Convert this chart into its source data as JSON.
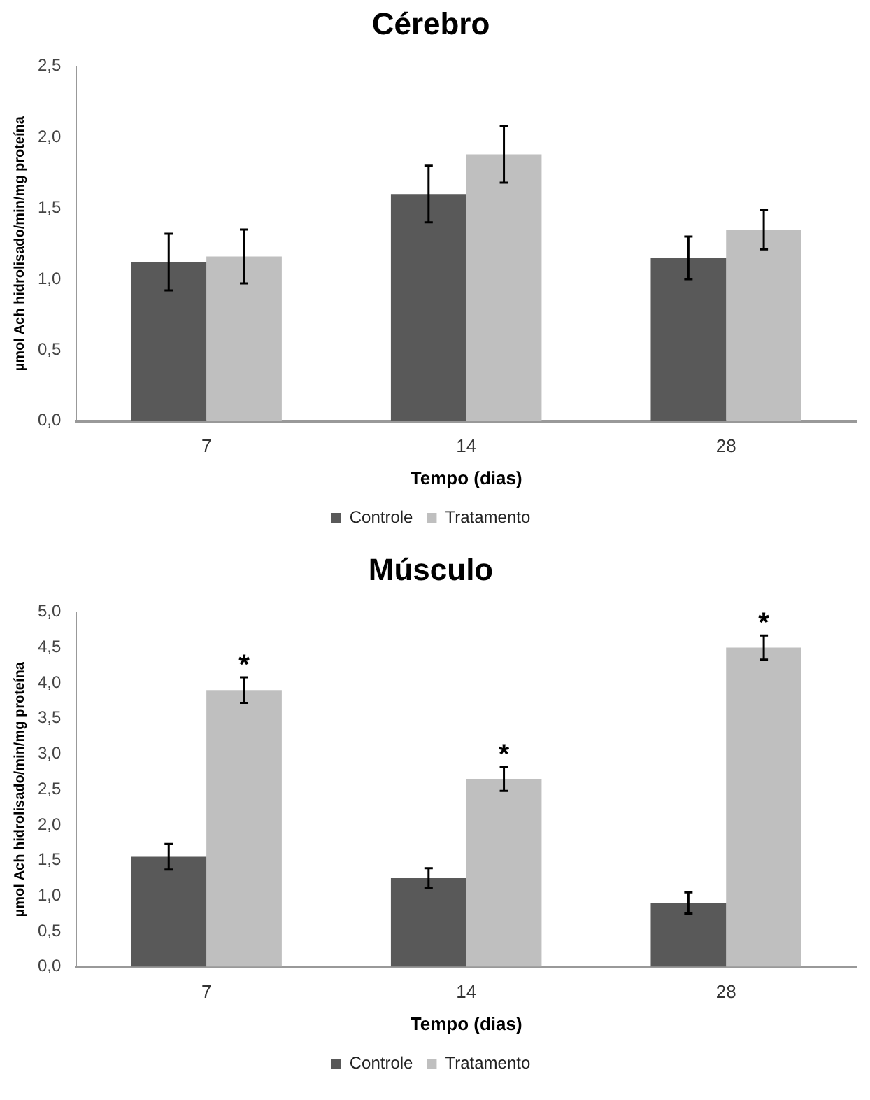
{
  "chart_data": [
    {
      "type": "bar",
      "title": "Cérebro",
      "xlabel": "Tempo (dias)",
      "ylabel": "µmol Ach hidrolisado/min/mg proteína",
      "categories": [
        "7",
        "14",
        "28"
      ],
      "series": [
        {
          "name": "Controle",
          "color": "#595959",
          "values": [
            1.12,
            1.6,
            1.15
          ],
          "errors": [
            0.2,
            0.2,
            0.15
          ]
        },
        {
          "name": "Tratamento",
          "color": "#bfbfbf",
          "values": [
            1.16,
            1.88,
            1.35
          ],
          "errors": [
            0.19,
            0.2,
            0.14
          ]
        }
      ],
      "ylim": [
        0,
        2.5
      ],
      "yticks": [
        {
          "value": 0,
          "label": "0,0"
        },
        {
          "value": 0.5,
          "label": "0,5"
        },
        {
          "value": 1,
          "label": "1,0"
        },
        {
          "value": 1.5,
          "label": "1,5"
        },
        {
          "value": 2,
          "label": "2,0"
        },
        {
          "value": 2.5,
          "label": "2,5"
        }
      ],
      "grid": false,
      "legend": "bottom"
    },
    {
      "type": "bar",
      "title": "Músculo",
      "xlabel": "Tempo (dias)",
      "ylabel": "µmol Ach hidrolisado/min/mg proteína",
      "categories": [
        "7",
        "14",
        "28"
      ],
      "series": [
        {
          "name": "Controle",
          "color": "#595959",
          "values": [
            1.55,
            1.25,
            0.9
          ],
          "errors": [
            0.18,
            0.14,
            0.15
          ]
        },
        {
          "name": "Tratamento",
          "color": "#bfbfbf",
          "values": [
            3.9,
            2.65,
            4.5
          ],
          "errors": [
            0.18,
            0.17,
            0.17
          ]
        }
      ],
      "ylim": [
        0,
        5
      ],
      "yticks": [
        {
          "value": 0,
          "label": "0,0"
        },
        {
          "value": 0.5,
          "label": "0,5"
        },
        {
          "value": 1,
          "label": "1,0"
        },
        {
          "value": 1.5,
          "label": "1,5"
        },
        {
          "value": 2,
          "label": "2,0"
        },
        {
          "value": 2.5,
          "label": "2,5"
        },
        {
          "value": 3,
          "label": "3,0"
        },
        {
          "value": 3.5,
          "label": "3,5"
        },
        {
          "value": 4,
          "label": "4,0"
        },
        {
          "value": 4.5,
          "label": "4,5"
        },
        {
          "value": 5,
          "label": "5,0"
        }
      ],
      "grid": false,
      "legend": "bottom",
      "annotations": [
        "*",
        "*",
        "*"
      ]
    }
  ]
}
